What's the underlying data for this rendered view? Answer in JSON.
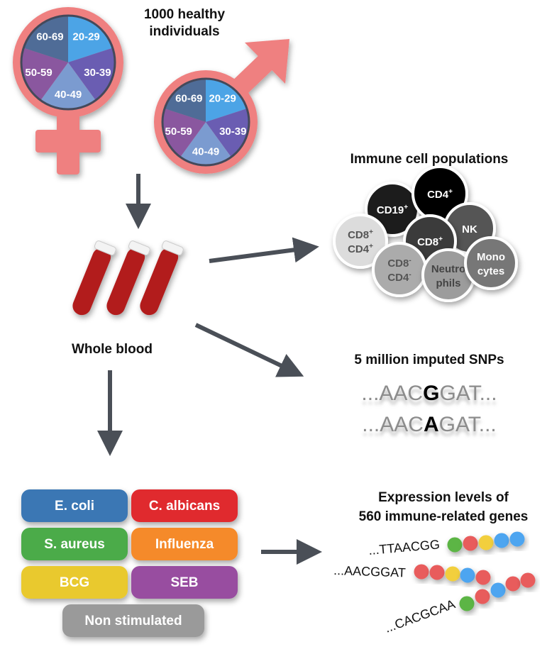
{
  "cohort": {
    "title_line1": "1000 healthy",
    "title_line2": "individuals",
    "age_groups": [
      "20-29",
      "30-39",
      "40-49",
      "50-59",
      "60-69"
    ],
    "age_colors": [
      "#4ca4e6",
      "#6a5db2",
      "#7b9bd0",
      "#8a579f",
      "#4f6c97"
    ],
    "symbol_color": "#ef8080"
  },
  "blood": {
    "label": "Whole blood"
  },
  "cells": {
    "title": "Immune cell populations",
    "items": [
      {
        "l1": "CD19",
        "sup1": "+",
        "l2": "",
        "sup2": "",
        "color": "#1e1e1e",
        "text": "#fff"
      },
      {
        "l1": "CD4",
        "sup1": "+",
        "l2": "",
        "sup2": "",
        "color": "#000000",
        "text": "#fff"
      },
      {
        "l1": "NK",
        "sup1": "",
        "l2": "",
        "sup2": "",
        "color": "#555555",
        "text": "#fff"
      },
      {
        "l1": "CD8",
        "sup1": "+",
        "l2": "CD4",
        "sup2": "+",
        "color": "#dcdcdc",
        "text": "#555"
      },
      {
        "l1": "CD8",
        "sup1": "+",
        "l2": "",
        "sup2": "",
        "color": "#3a3a3a",
        "text": "#fff"
      },
      {
        "l1": "CD8",
        "sup1": "-",
        "l2": "CD4",
        "sup2": "-",
        "color": "#ababab",
        "text": "#555"
      },
      {
        "l1": "Neutro",
        "sup1": "",
        "l2": "phils",
        "sup2": "",
        "color": "#9c9c9c",
        "text": "#444"
      },
      {
        "l1": "Mono",
        "sup1": "",
        "l2": "cytes",
        "sup2": "",
        "color": "#777777",
        "text": "#fff"
      }
    ]
  },
  "snps": {
    "title": "5 million imputed SNPs",
    "row1": {
      "pre": "...AAC",
      "snp": "G",
      "post": "GAT..."
    },
    "row2": {
      "pre": "...AAC",
      "snp": "A",
      "post": "GAT..."
    }
  },
  "expression": {
    "title_line1": "Expression levels of",
    "title_line2": "560 immune-related genes",
    "rows": [
      {
        "seq": "...TTAACGG",
        "beads": [
          "green",
          "red",
          "yellow",
          "blue",
          "blue"
        ]
      },
      {
        "seq": "...AACGGAT",
        "beads": [
          "red",
          "red",
          "yellow",
          "blue",
          "red"
        ]
      },
      {
        "seq": "...CACGCAA",
        "beads": [
          "green",
          "red",
          "blue",
          "red",
          "red"
        ]
      }
    ],
    "bead_colors": {
      "green": "#5cb545",
      "red": "#e85c5c",
      "yellow": "#f2cf3c",
      "blue": "#4ea5f0"
    }
  },
  "stimuli": [
    {
      "label": "E. coli",
      "color": "#3a77b4"
    },
    {
      "label": "C. albicans",
      "color": "#e02a2e"
    },
    {
      "label": "S. aureus",
      "color": "#4bab4a"
    },
    {
      "label": "Influenza",
      "color": "#f58a2b"
    },
    {
      "label": "BCG",
      "color": "#e9c92e"
    },
    {
      "label": "SEB",
      "color": "#984ea0"
    },
    {
      "label": "Non stimulated",
      "color": "#9a9a9a"
    }
  ]
}
